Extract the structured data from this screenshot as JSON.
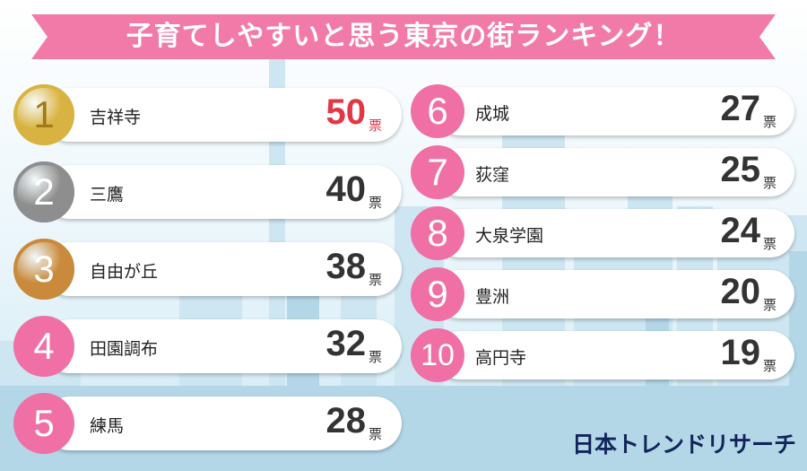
{
  "title": "子育てしやすいと思う東京の街ランキング！",
  "brand": "日本トレンドリサーチ",
  "colors": {
    "banner": "#f27aa9",
    "badge": "#f06fa4",
    "first_votes": "#e23744",
    "gold": "#d9b341",
    "silver": "#8e8e8e",
    "bronze": "#c98a3b"
  },
  "chart_data": {
    "type": "table",
    "unit": "票",
    "rankings": [
      {
        "rank": "1",
        "name": "吉祥寺",
        "votes": "50",
        "medal": "gold"
      },
      {
        "rank": "2",
        "name": "三鷹",
        "votes": "40",
        "medal": "silver"
      },
      {
        "rank": "3",
        "name": "自由が丘",
        "votes": "38",
        "medal": "bronze"
      },
      {
        "rank": "4",
        "name": "田園調布",
        "votes": "32"
      },
      {
        "rank": "5",
        "name": "練馬",
        "votes": "28"
      },
      {
        "rank": "6",
        "name": "成城",
        "votes": "27"
      },
      {
        "rank": "7",
        "name": "荻窪",
        "votes": "25"
      },
      {
        "rank": "8",
        "name": "大泉学園",
        "votes": "24"
      },
      {
        "rank": "9",
        "name": "豊洲",
        "votes": "20"
      },
      {
        "rank": "10",
        "name": "高円寺",
        "votes": "19"
      }
    ]
  }
}
